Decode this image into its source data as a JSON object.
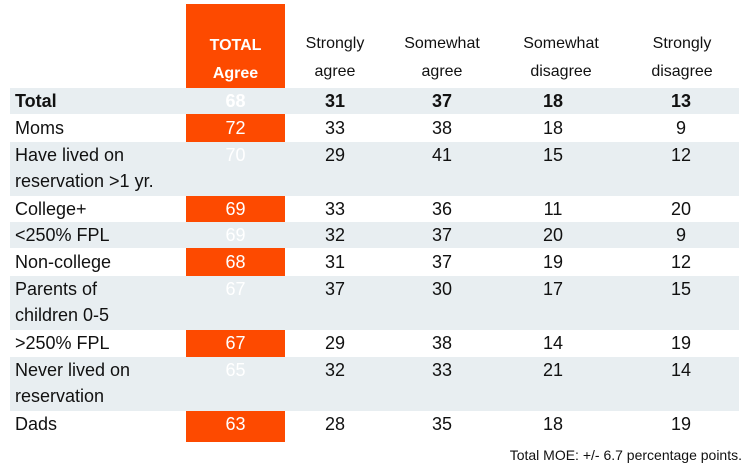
{
  "chart_data": {
    "type": "table",
    "title": "",
    "header": {
      "total": [
        "TOTAL",
        "Agree"
      ],
      "columns": [
        [
          "Strongly",
          "agree"
        ],
        [
          "Somewhat",
          "agree"
        ],
        [
          "Somewhat",
          "disagree"
        ],
        [
          "Strongly",
          "disagree"
        ]
      ]
    },
    "rows": [
      {
        "label": [
          "Total"
        ],
        "total": 68,
        "values": [
          31,
          37,
          18,
          13
        ],
        "bold": true,
        "shaded": true
      },
      {
        "label": [
          "Moms"
        ],
        "total": 72,
        "values": [
          33,
          38,
          18,
          9
        ],
        "bold": false,
        "shaded": false
      },
      {
        "label": [
          "Have lived on",
          "reservation >1 yr."
        ],
        "total": 70,
        "values": [
          29,
          41,
          15,
          12
        ],
        "bold": false,
        "shaded": true
      },
      {
        "label": [
          "College+"
        ],
        "total": 69,
        "values": [
          33,
          36,
          11,
          20
        ],
        "bold": false,
        "shaded": false
      },
      {
        "label": [
          "<250% FPL"
        ],
        "total": 69,
        "values": [
          32,
          37,
          20,
          9
        ],
        "bold": false,
        "shaded": true
      },
      {
        "label": [
          "Non-college"
        ],
        "total": 68,
        "values": [
          31,
          37,
          19,
          12
        ],
        "bold": false,
        "shaded": false
      },
      {
        "label": [
          "Parents of",
          "children 0-5"
        ],
        "total": 67,
        "values": [
          37,
          30,
          17,
          15
        ],
        "bold": false,
        "shaded": true
      },
      {
        "label": [
          ">250% FPL"
        ],
        "total": 67,
        "values": [
          29,
          38,
          14,
          19
        ],
        "bold": false,
        "shaded": false
      },
      {
        "label": [
          "Never lived on",
          "reservation"
        ],
        "total": 65,
        "values": [
          32,
          33,
          21,
          14
        ],
        "bold": false,
        "shaded": true
      },
      {
        "label": [
          "Dads"
        ],
        "total": 63,
        "values": [
          28,
          35,
          18,
          19
        ],
        "bold": false,
        "shaded": false
      }
    ],
    "footnote": "Total MOE: +/- 6.7 percentage points.",
    "colors": {
      "total_column": "#fd4a00",
      "shaded_row": "#e8eef1"
    }
  }
}
